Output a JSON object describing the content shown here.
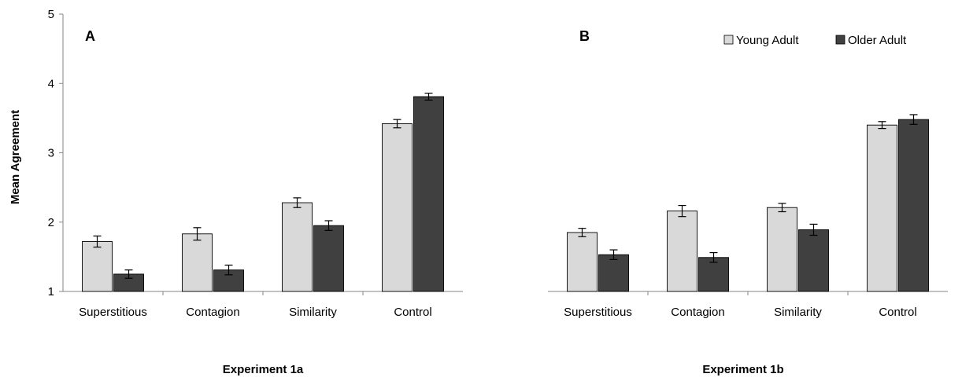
{
  "chart_data": [
    {
      "type": "bar",
      "panel_label": "A",
      "xlabel": "Experiment 1a",
      "ylabel": "Mean Agreement",
      "ylim": [
        1,
        5
      ],
      "yticks": [
        "1",
        "2",
        "3",
        "4",
        "5"
      ],
      "categories": [
        "Superstitious",
        "Contagion",
        "Similarity",
        "Control"
      ],
      "series": [
        {
          "name": "Young Adult",
          "color": "#d9d9d9",
          "values": [
            1.72,
            1.83,
            2.28,
            3.42
          ],
          "errors": [
            0.08,
            0.09,
            0.07,
            0.06
          ]
        },
        {
          "name": "Older Adult",
          "color": "#404040",
          "values": [
            1.25,
            1.31,
            1.95,
            3.81
          ],
          "errors": [
            0.06,
            0.07,
            0.07,
            0.05
          ]
        }
      ],
      "legend": "none",
      "grid": false
    },
    {
      "type": "bar",
      "panel_label": "B",
      "xlabel": "Experiment 1b",
      "ylabel": "",
      "ylim": [
        1,
        5
      ],
      "yticks": [],
      "categories": [
        "Superstitious",
        "Contagion",
        "Similarity",
        "Control"
      ],
      "series": [
        {
          "name": "Young Adult",
          "color": "#d9d9d9",
          "values": [
            1.85,
            2.16,
            2.21,
            3.4
          ],
          "errors": [
            0.06,
            0.08,
            0.06,
            0.05
          ]
        },
        {
          "name": "Older Adult",
          "color": "#404040",
          "values": [
            1.53,
            1.49,
            1.89,
            3.48
          ],
          "errors": [
            0.07,
            0.07,
            0.08,
            0.07
          ]
        }
      ],
      "legend": "top-right",
      "grid": false
    }
  ]
}
